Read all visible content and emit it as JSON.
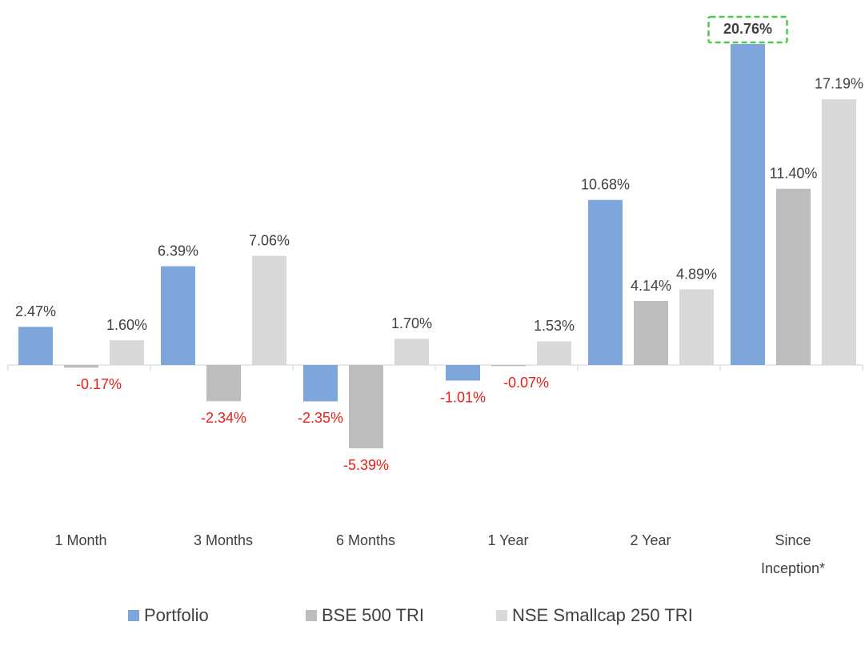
{
  "chart_data": {
    "type": "bar",
    "categories": [
      "1 Month",
      "3 Months",
      "6 Months",
      "1 Year",
      "2 Year",
      "Since Inception*"
    ],
    "series": [
      {
        "name": "Portfolio",
        "color": "#7fa6db",
        "values": [
          2.47,
          6.39,
          -2.35,
          -1.01,
          10.68,
          20.76
        ],
        "value_labels": [
          "2.47%",
          "6.39%",
          "-2.35%",
          "-1.01%",
          "10.68%",
          "20.76%"
        ]
      },
      {
        "name": "BSE 500 TRI",
        "color": "#bdbdbd",
        "values": [
          -0.17,
          -2.34,
          -5.39,
          -0.07,
          4.14,
          11.4
        ],
        "value_labels": [
          "-0.17%",
          "-2.34%",
          "-5.39%",
          "-0.07%",
          "4.14%",
          "11.40%"
        ]
      },
      {
        "name": "NSE Smallcap 250 TRI",
        "color": "#d9d9d9",
        "values": [
          1.6,
          7.06,
          1.7,
          1.53,
          4.89,
          17.19
        ],
        "value_labels": [
          "1.60%",
          "7.06%",
          "1.70%",
          "1.53%",
          "4.89%",
          "17.19%"
        ]
      }
    ],
    "legend": "bottom"
  }
}
